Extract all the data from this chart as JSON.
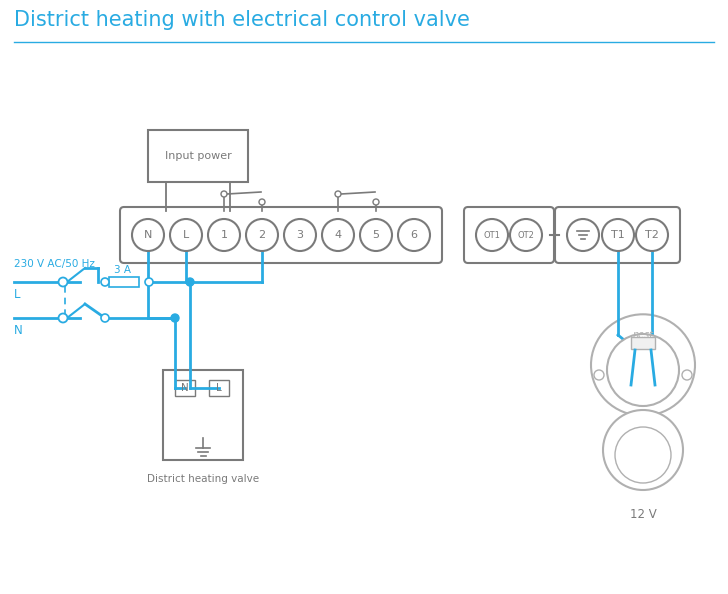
{
  "title": "District heating with electrical control valve",
  "title_color": "#29abe2",
  "title_fontsize": 15,
  "line_color": "#29abe2",
  "gray_color": "#7a7a7a",
  "light_gray": "#b0b0b0",
  "bg_color": "#ffffff",
  "fuse_label": "3 A",
  "voltage_label": "230 V AC/50 Hz",
  "line_label_L": "L",
  "line_label_N": "N",
  "valve_label": "District heating valve",
  "nest_label": "12 V",
  "input_power_label": "Input power"
}
